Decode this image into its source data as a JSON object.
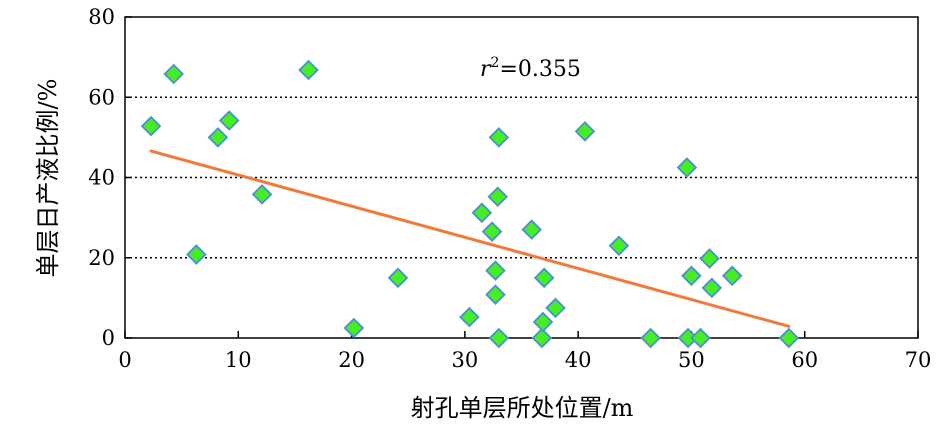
{
  "chart_data": {
    "type": "scatter",
    "title": "",
    "xlabel": "射孔单层所处位置/m",
    "ylabel": "单层日产液比例/%",
    "xlim": [
      0,
      70
    ],
    "ylim": [
      0,
      80
    ],
    "xticks": [
      0,
      10,
      20,
      30,
      40,
      50,
      60,
      70
    ],
    "yticks": [
      0,
      20,
      40,
      60,
      80
    ],
    "grid": "horizontal-dotted",
    "annotation": {
      "r_symbol": "r",
      "sup": "2",
      "rest": "=0.355"
    },
    "series": [
      {
        "marker": "diamond",
        "color": "#44ee22",
        "edge_color": "#4a8fd6",
        "points": [
          [
            2.3,
            52.8
          ],
          [
            4.3,
            65.8
          ],
          [
            6.3,
            20.8
          ],
          [
            8.2,
            50.0
          ],
          [
            9.2,
            54.2
          ],
          [
            12.1,
            35.8
          ],
          [
            16.2,
            66.8
          ],
          [
            20.2,
            2.5
          ],
          [
            24.1,
            15.0
          ],
          [
            30.4,
            5.2
          ],
          [
            31.5,
            31.2
          ],
          [
            32.4,
            26.5
          ],
          [
            32.7,
            10.8
          ],
          [
            32.7,
            16.8
          ],
          [
            32.9,
            35.2
          ],
          [
            33.0,
            50.0
          ],
          [
            33.0,
            0.0
          ],
          [
            35.9,
            27.0
          ],
          [
            36.8,
            0.0
          ],
          [
            36.9,
            4.0
          ],
          [
            37.0,
            15.0
          ],
          [
            38.0,
            7.5
          ],
          [
            40.6,
            51.5
          ],
          [
            43.6,
            23.0
          ],
          [
            46.4,
            0.0
          ],
          [
            49.6,
            42.5
          ],
          [
            49.7,
            0.0
          ],
          [
            50.0,
            15.5
          ],
          [
            50.8,
            0.0
          ],
          [
            51.6,
            19.8
          ],
          [
            51.8,
            12.5
          ],
          [
            53.6,
            15.5
          ],
          [
            58.6,
            0.0
          ]
        ]
      }
    ],
    "trendline": {
      "color": "#f07a3a",
      "x": [
        2.3,
        58.6
      ],
      "y": [
        46.6,
        2.9
      ]
    }
  }
}
